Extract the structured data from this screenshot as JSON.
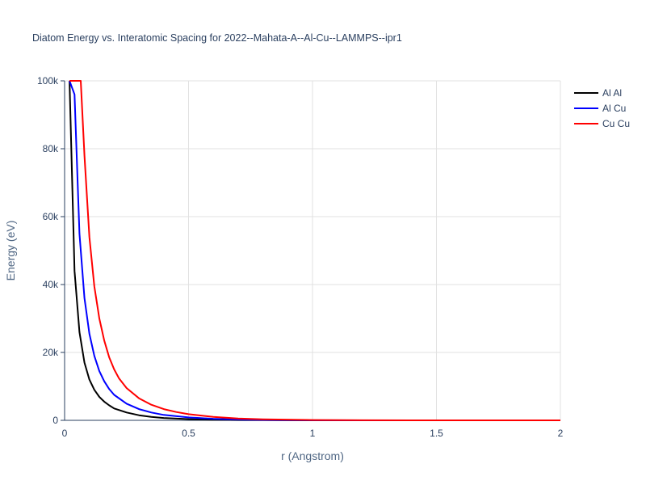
{
  "chart_data": {
    "type": "line",
    "title": "Diatom Energy vs. Interatomic Spacing for 2022--Mahata-A--Al-Cu--LAMMPS--ipr1",
    "xlabel": "r (Angstrom)",
    "ylabel": "Energy (eV)",
    "xlim": [
      0,
      2
    ],
    "ylim": [
      0,
      100000
    ],
    "x_ticks": [
      0,
      0.5,
      1,
      1.5,
      2
    ],
    "x_tick_labels": [
      "0",
      "0.5",
      "1",
      "1.5",
      "2"
    ],
    "y_ticks": [
      0,
      20000,
      40000,
      60000,
      80000,
      100000
    ],
    "y_tick_labels": [
      "0",
      "20k",
      "40k",
      "60k",
      "80k",
      "100k"
    ],
    "x_grid": true,
    "y_grid": true,
    "legend_position": "top-right",
    "series": [
      {
        "name": "Al Al",
        "color": "#000000",
        "x": [
          0.02,
          0.04,
          0.06,
          0.08,
          0.1,
          0.12,
          0.14,
          0.16,
          0.18,
          0.2,
          0.25,
          0.3,
          0.35,
          0.4,
          0.5,
          0.6,
          0.7,
          0.8,
          1.0,
          1.2,
          1.5,
          2.0
        ],
        "y": [
          100000,
          44000,
          26000,
          17000,
          12000,
          9000,
          6900,
          5500,
          4400,
          3500,
          2300,
          1500,
          1000,
          700,
          350,
          180,
          90,
          40,
          10,
          0,
          0,
          0
        ]
      },
      {
        "name": "Al Cu",
        "color": "#0000ff",
        "x": [
          0.02,
          0.04,
          0.06,
          0.08,
          0.1,
          0.12,
          0.14,
          0.16,
          0.18,
          0.2,
          0.25,
          0.3,
          0.35,
          0.4,
          0.5,
          0.6,
          0.7,
          0.8,
          1.0,
          1.2,
          1.5,
          2.0
        ],
        "y": [
          100000,
          96000,
          55000,
          36000,
          25500,
          19000,
          14500,
          11500,
          9200,
          7500,
          4900,
          3300,
          2300,
          1600,
          850,
          450,
          230,
          110,
          20,
          0,
          0,
          0
        ]
      },
      {
        "name": "Cu Cu",
        "color": "#ff0000",
        "x": [
          0.02,
          0.065,
          0.08,
          0.1,
          0.12,
          0.14,
          0.16,
          0.18,
          0.2,
          0.22,
          0.25,
          0.3,
          0.35,
          0.4,
          0.45,
          0.5,
          0.6,
          0.7,
          0.8,
          1.0,
          1.2,
          1.5,
          2.0
        ],
        "y": [
          100000,
          100000,
          78000,
          54000,
          39500,
          30000,
          23500,
          18500,
          15000,
          12300,
          9500,
          6500,
          4600,
          3300,
          2450,
          1800,
          1000,
          550,
          300,
          100,
          30,
          10,
          0
        ]
      }
    ]
  }
}
